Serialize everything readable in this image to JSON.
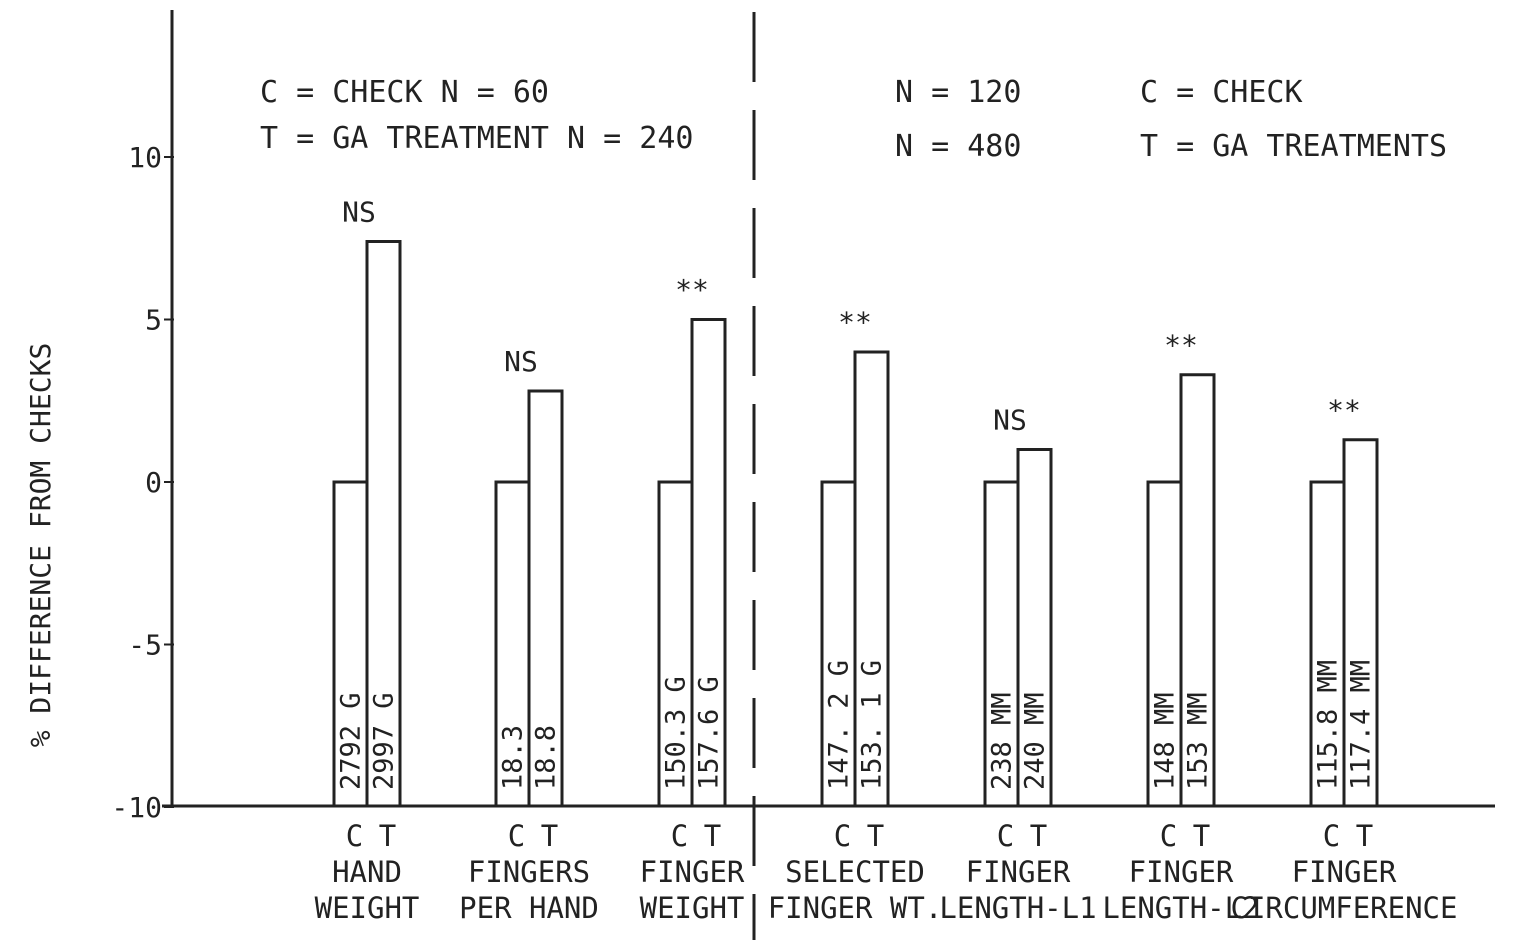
{
  "chart_data": {
    "type": "bar",
    "ylabel": "% DIFFERENCE FROM CHECKS",
    "ylim": [
      -10,
      15
    ],
    "yticks": [
      {
        "value": 10,
        "label": "10"
      },
      {
        "value": 5,
        "label": "5"
      },
      {
        "value": 0,
        "label": "0"
      },
      {
        "value": -5,
        "label": "-5"
      },
      {
        "value": -10,
        "label": "-10"
      }
    ],
    "grid": false,
    "legend_left": [
      "C = CHECK   N = 60",
      "T = GA TREATMENT   N = 240"
    ],
    "legend_right_n": [
      "N = 120",
      "N = 480"
    ],
    "legend_right_key": [
      "C = CHECK",
      "T = GA TREATMENTS"
    ],
    "bar_labels": [
      "C",
      "T"
    ],
    "groups": [
      {
        "category": [
          "HAND",
          "WEIGHT"
        ],
        "significance": "NS",
        "check": {
          "value": 0,
          "label": "2792 G"
        },
        "treatment": {
          "value": 7.4,
          "label": "2997 G"
        }
      },
      {
        "category": [
          "FINGERS",
          "PER HAND"
        ],
        "significance": "NS",
        "check": {
          "value": 0,
          "label": "18.3"
        },
        "treatment": {
          "value": 2.8,
          "label": "18.8"
        }
      },
      {
        "category": [
          "FINGER",
          "WEIGHT"
        ],
        "significance": "**",
        "check": {
          "value": 0,
          "label": "150.3 G"
        },
        "treatment": {
          "value": 5.0,
          "label": "157.6 G"
        }
      },
      {
        "category": [
          "SELECTED",
          "FINGER WT."
        ],
        "significance": "**",
        "check": {
          "value": 0,
          "label": "147. 2 G"
        },
        "treatment": {
          "value": 4.0,
          "label": "153. 1 G"
        }
      },
      {
        "category": [
          "FINGER",
          "LENGTH-L1"
        ],
        "significance": "NS",
        "check": {
          "value": 0,
          "label": "238 MM"
        },
        "treatment": {
          "value": 1.0,
          "label": "240 MM"
        }
      },
      {
        "category": [
          "FINGER",
          "LENGTH-L2"
        ],
        "significance": "**",
        "check": {
          "value": 0,
          "label": "148 MM"
        },
        "treatment": {
          "value": 3.3,
          "label": "153 MM"
        }
      },
      {
        "category": [
          "FINGER",
          "CIRCUMFERENCE"
        ],
        "significance": "**",
        "check": {
          "value": 0,
          "label": "115.8 MM"
        },
        "treatment": {
          "value": 1.3,
          "label": "117.4 MM"
        }
      }
    ]
  }
}
